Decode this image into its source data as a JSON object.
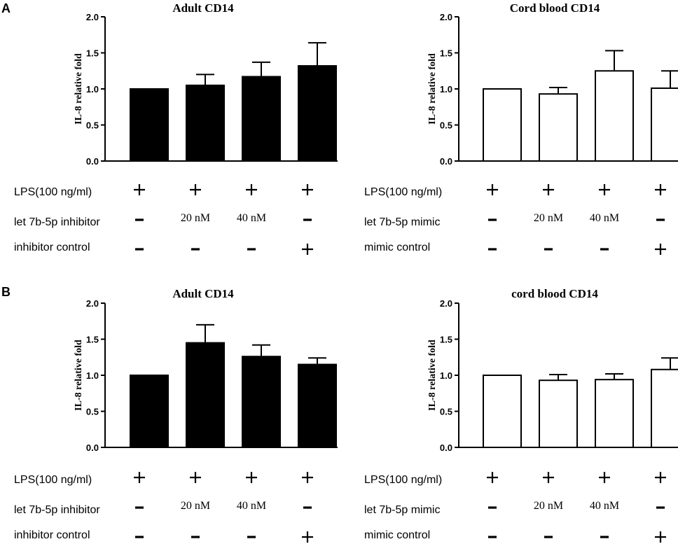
{
  "panels": [
    {
      "letter": "A"
    },
    {
      "letter": "B"
    }
  ],
  "chart_data": [
    {
      "type": "bar",
      "panel": "A",
      "title": "Adult CD14",
      "ylabel": "IL-8 relative fold",
      "ylim": [
        0,
        2.0
      ],
      "yticks": [
        "0.0",
        "0.5",
        "1.0",
        "1.5",
        "2.0"
      ],
      "fill": "#000000",
      "values": [
        1.0,
        1.05,
        1.17,
        1.32
      ],
      "errors": [
        0.0,
        0.15,
        0.2,
        0.32
      ],
      "conditions": [
        {
          "label": "LPS(100 ng/ml)",
          "cells": [
            "+",
            "+",
            "+",
            "+"
          ]
        },
        {
          "label": "let 7b-5p inhibitor",
          "cells": [
            "-",
            "20 nM",
            "40 nM",
            "-"
          ]
        },
        {
          "label": "inhibitor control",
          "cells": [
            "-",
            "-",
            "-",
            "+"
          ]
        }
      ]
    },
    {
      "type": "bar",
      "panel": "A",
      "title": "Cord blood CD14",
      "ylabel": "IL-8 relative fold",
      "ylim": [
        0,
        2.0
      ],
      "yticks": [
        "0.0",
        "0.5",
        "1.0",
        "1.5",
        "2.0"
      ],
      "fill": "#ffffff",
      "values": [
        1.0,
        0.93,
        1.25,
        1.01
      ],
      "errors": [
        0.0,
        0.09,
        0.28,
        0.24
      ],
      "conditions": [
        {
          "label": "LPS(100 ng/ml)",
          "cells": [
            "+",
            "+",
            "+",
            "+"
          ]
        },
        {
          "label": "let 7b-5p mimic",
          "cells": [
            "-",
            "20 nM",
            "40 nM",
            "-"
          ]
        },
        {
          "label": "mimic  control",
          "cells": [
            "-",
            "-",
            "-",
            "+"
          ]
        }
      ]
    },
    {
      "type": "bar",
      "panel": "B",
      "title": "Adult CD14",
      "ylabel": "IL-8 relative fold",
      "ylim": [
        0,
        2.0
      ],
      "yticks": [
        "0.0",
        "0.5",
        "1.0",
        "1.5",
        "2.0"
      ],
      "fill": "#000000",
      "values": [
        1.0,
        1.45,
        1.26,
        1.15
      ],
      "errors": [
        0.0,
        0.25,
        0.16,
        0.09
      ],
      "conditions": [
        {
          "label": "LPS(100 ng/ml)",
          "cells": [
            "+",
            "+",
            "+",
            "+"
          ]
        },
        {
          "label": "let 7b-5p inhibitor",
          "cells": [
            "-",
            "20 nM",
            "40 nM",
            "-"
          ]
        },
        {
          "label": "inhibitor control",
          "cells": [
            "-",
            "-",
            "-",
            "+"
          ]
        }
      ]
    },
    {
      "type": "bar",
      "panel": "B",
      "title": "cord blood CD14",
      "ylabel": "IL-8 relative fold",
      "ylim": [
        0,
        2.0
      ],
      "yticks": [
        "0.0",
        "0.5",
        "1.0",
        "1.5",
        "2.0"
      ],
      "fill": "#ffffff",
      "values": [
        1.0,
        0.93,
        0.94,
        1.08
      ],
      "errors": [
        0.0,
        0.08,
        0.08,
        0.16
      ],
      "conditions": [
        {
          "label": "LPS(100 ng/ml)",
          "cells": [
            "+",
            "+",
            "+",
            "+"
          ]
        },
        {
          "label": "let 7b-5p mimic",
          "cells": [
            "-",
            "20 nM",
            "40 nM",
            "-"
          ]
        },
        {
          "label": "mimic  control",
          "cells": [
            "-",
            "-",
            "-",
            "+"
          ]
        }
      ]
    }
  ]
}
